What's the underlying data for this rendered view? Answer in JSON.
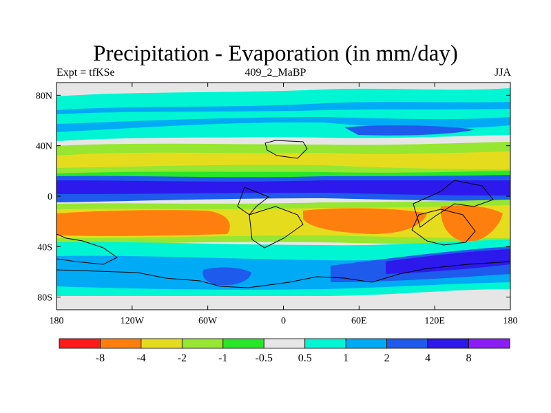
{
  "title": "Precipitation - Evaporation (in mm/day)",
  "subtitle_left": "Expt = tfKSe",
  "subtitle_center": "409_2_MaBP",
  "subtitle_right": "JJA",
  "map": {
    "lon_range": [
      -180,
      180
    ],
    "lat_range": [
      -90,
      90
    ],
    "lon_ticks": [
      {
        "value": -180,
        "label": "180"
      },
      {
        "value": -120,
        "label": "120W"
      },
      {
        "value": -60,
        "label": "60W"
      },
      {
        "value": 0,
        "label": "0"
      },
      {
        "value": 60,
        "label": "60E"
      },
      {
        "value": 120,
        "label": "120E"
      },
      {
        "value": 180,
        "label": "180"
      }
    ],
    "lat_ticks": [
      {
        "value": 80,
        "label": "80N"
      },
      {
        "value": 40,
        "label": "40N"
      },
      {
        "value": 0,
        "label": "0"
      },
      {
        "value": -40,
        "label": "40S"
      },
      {
        "value": -80,
        "label": "80S"
      }
    ]
  },
  "colorbar": {
    "colors": [
      "#ff1a1a",
      "#ff7f0e",
      "#e6dc1e",
      "#96e632",
      "#28e628",
      "#e6e6e6",
      "#00f5d2",
      "#00aaf5",
      "#1e5aeb",
      "#2d19eb",
      "#8c1ef5"
    ],
    "labels": [
      "-8",
      "-4",
      "-2",
      "-1",
      "-0.5",
      "0.5",
      "1",
      "2",
      "4",
      "8"
    ]
  }
}
